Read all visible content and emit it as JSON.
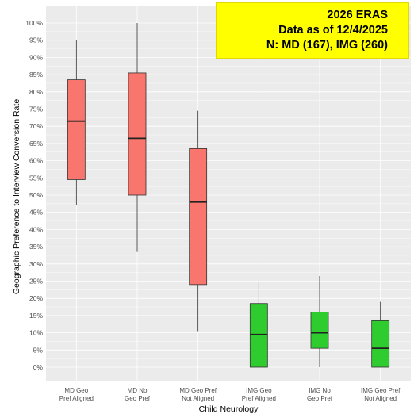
{
  "annotation": {
    "line1": "2026 ERAS",
    "line2": "Data as of 12/4/2025",
    "line3": "N: MD (167), IMG (260)"
  },
  "colors": {
    "md": "#f8766d",
    "img": "#2ecc2e",
    "panel": "#ebebeb",
    "grid": "#ffffff",
    "annotation_bg": "#ffff00"
  },
  "chart_data": {
    "type": "box",
    "title": "",
    "xlabel": "Child Neurology",
    "ylabel": "Geographic Preference to Interview Conversion Rate",
    "ylim": [
      0,
      100
    ],
    "y_ticks": [
      0,
      5,
      10,
      15,
      20,
      25,
      30,
      35,
      40,
      45,
      50,
      55,
      60,
      65,
      70,
      75,
      80,
      85,
      90,
      95,
      100
    ],
    "y_tick_suffix": "%",
    "grid": true,
    "categories": [
      [
        "MD Geo",
        "Pref Aligned"
      ],
      [
        "MD No",
        "Geo Pref"
      ],
      [
        "MD Geo Pref",
        "Not Aligned"
      ],
      [
        "IMG Geo",
        "Pref Aligned"
      ],
      [
        "IMG No",
        "Geo Pref"
      ],
      [
        "IMG Geo Pref",
        "Not Aligned"
      ]
    ],
    "groups": [
      "md",
      "md",
      "md",
      "img",
      "img",
      "img"
    ],
    "boxes": [
      {
        "min": 47,
        "q1": 54.5,
        "median": 71.5,
        "q3": 83.5,
        "max": 95
      },
      {
        "min": 33.5,
        "q1": 50,
        "median": 66.5,
        "q3": 85.5,
        "max": 100
      },
      {
        "min": 10.5,
        "q1": 24,
        "median": 48,
        "q3": 63.5,
        "max": 74.5
      },
      {
        "min": 0,
        "q1": 0,
        "median": 9.5,
        "q3": 18.5,
        "max": 25
      },
      {
        "min": 0,
        "q1": 5.5,
        "median": 10,
        "q3": 16,
        "max": 26.5
      },
      {
        "min": 0,
        "q1": 0,
        "median": 5.5,
        "q3": 13.5,
        "max": 19
      }
    ]
  }
}
